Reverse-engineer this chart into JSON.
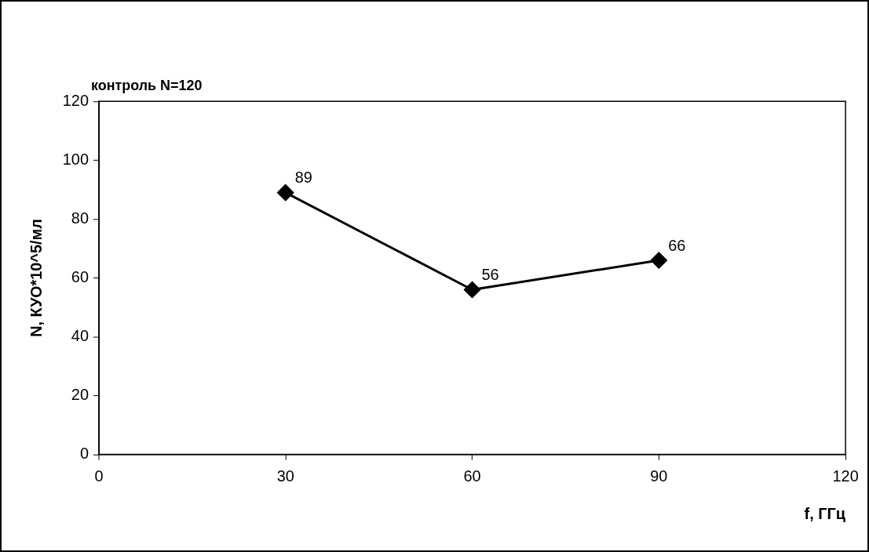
{
  "chart_data": {
    "type": "line",
    "annotations": [
      "контроль N=120"
    ],
    "xlabel": "f, ГГц",
    "ylabel": "N, КУО*10^5/мл",
    "x": [
      30,
      60,
      90
    ],
    "series": [
      {
        "color": "#000000",
        "values": [
          89,
          56,
          66
        ]
      }
    ],
    "xlim": [
      0,
      120
    ],
    "xticks": [
      0,
      30,
      60,
      90,
      120
    ],
    "ylim": [
      0,
      120
    ],
    "yticks": [
      0,
      20,
      40,
      60,
      80,
      100,
      120
    ],
    "data_labels": true,
    "marker": "diamond",
    "line_style": "solid",
    "grid": false,
    "legend": false
  }
}
